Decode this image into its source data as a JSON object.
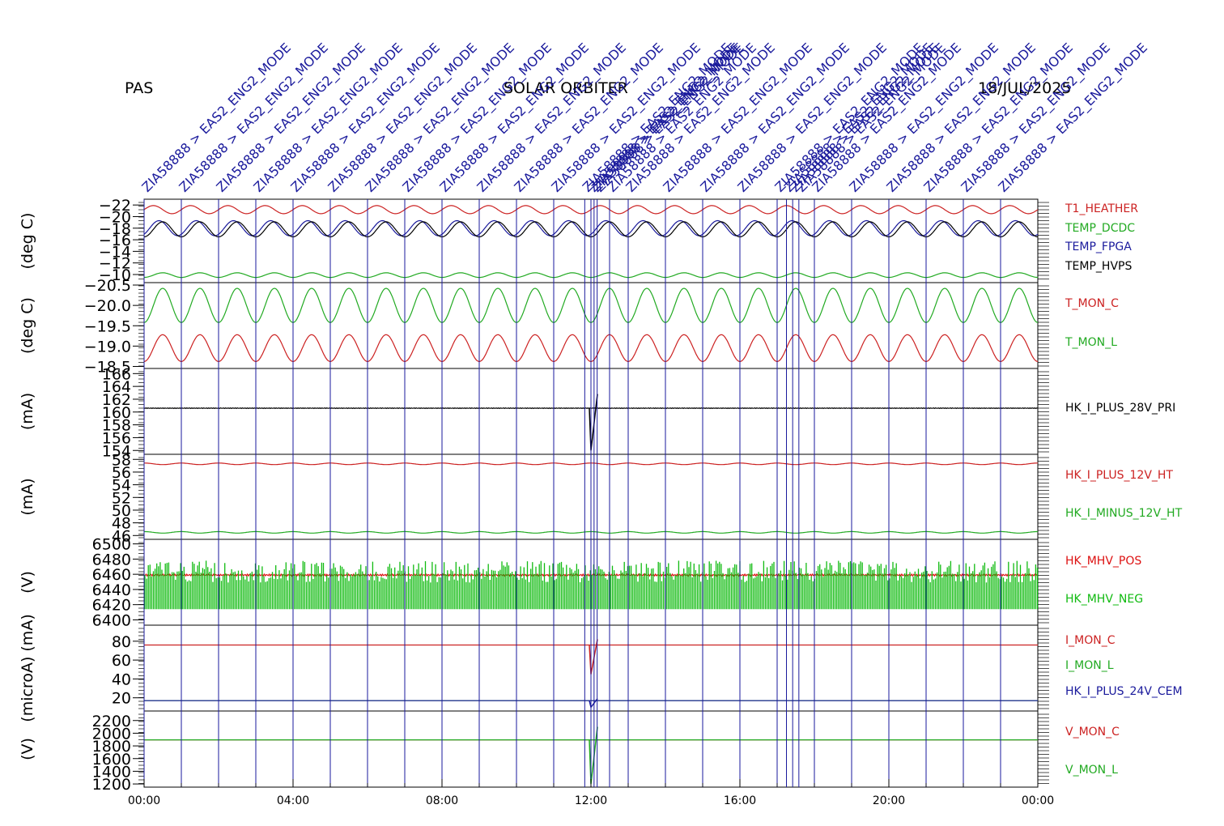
{
  "header": {
    "left": "PAS",
    "center": "SOLAR ORBITER",
    "right": "18/JUL/2025"
  },
  "event_labels": [
    {
      "time": "00:00",
      "text": "ZIA58888 > EAS2_ENG2_MODE"
    },
    {
      "time": "01:00",
      "text": "ZIA58888 > EAS2_ENG2_MODE"
    },
    {
      "time": "02:00",
      "text": "ZIA58888 > EAS2_ENG2_MODE"
    },
    {
      "time": "03:00",
      "text": "ZIA58888 > EAS2_ENG2_MODE"
    },
    {
      "time": "04:00",
      "text": "ZIA58888 > EAS2_ENG2_MODE"
    },
    {
      "time": "05:00",
      "text": "ZIA58888 > EAS2_ENG2_MODE"
    },
    {
      "time": "06:00",
      "text": "ZIA58888 > EAS2_ENG2_MODE"
    },
    {
      "time": "07:00",
      "text": "ZIA58888 > EAS2_ENG2_MODE"
    },
    {
      "time": "08:00",
      "text": "ZIA58888 > EAS2_ENG2_MODE"
    },
    {
      "time": "09:00",
      "text": "ZIA58888 > EAS2_ENG2_MODE"
    },
    {
      "time": "10:00",
      "text": "ZIA58888 > EAS2_ENG2_MODE"
    },
    {
      "time": "11:00",
      "text": "ZIA58888 > EAS2_ENG2_MODE"
    },
    {
      "time": "11:50",
      "text": "ZIA58888 > EAS2_ENG2_MODE"
    },
    {
      "time": "12:00",
      "text": "ZIA58888 > EAS2_ENG2_MODE"
    },
    {
      "time": "12:05",
      "text": "ZIA58888 > EAS2_ENG2_MODE"
    },
    {
      "time": "12:10",
      "text": "ZIA58888 > EAS2_ENG2_MODE"
    },
    {
      "time": "12:30",
      "text": "ZIA58888 > EAS2_ENG2_MODE"
    },
    {
      "time": "13:00",
      "text": "ZIA58888 > EAS2_ENG2_MODE"
    },
    {
      "time": "14:00",
      "text": "ZIA58888 > EAS2_ENG2_MODE"
    },
    {
      "time": "15:00",
      "text": "ZIA58888 > EAS2_ENG2_MODE"
    },
    {
      "time": "16:00",
      "text": "ZIA58888 > EAS2_ENG2_MODE"
    },
    {
      "time": "17:00",
      "text": "ZIA58888 > EAS2_ENG2_MODE"
    },
    {
      "time": "17:15",
      "text": "ZIA58888 > EAS2_ENG2_MODE"
    },
    {
      "time": "17:25",
      "text": "ZIA58888 > EAS2_ENG2_MODE"
    },
    {
      "time": "17:35",
      "text": "ZIA58888 > EAS2_ENG2_MODE"
    },
    {
      "time": "18:00",
      "text": "ZIA58888 > EAS2_ENG2_MODE"
    },
    {
      "time": "19:00",
      "text": "ZIA58888 > EAS2_ENG2_MODE"
    },
    {
      "time": "20:00",
      "text": "ZIA58888 > EAS2_ENG2_MODE"
    },
    {
      "time": "21:00",
      "text": "ZIA58888 > EAS2_ENG2_MODE"
    },
    {
      "time": "22:00",
      "text": "ZIA58888 > EAS2_ENG2_MODE"
    },
    {
      "time": "23:00",
      "text": "ZIA58888 > EAS2_ENG2_MODE"
    }
  ],
  "chart_data": {
    "type": "line",
    "x_ticks": [
      "00:00",
      "04:00",
      "08:00",
      "12:00",
      "16:00",
      "20:00",
      "00:00"
    ],
    "x_range_hours": [
      0,
      24
    ],
    "event_line_color": "#1a1a9c",
    "panels": [
      {
        "ylabel": "(deg C)",
        "ylim": [
          -23,
          -8.6
        ],
        "inverted": true,
        "ticks": [
          -10,
          -12,
          -14,
          -16,
          -18,
          -20,
          -22
        ],
        "tick_labels": [
          "−10",
          "−12",
          "−14",
          "−16",
          "−18",
          "−20",
          "−22"
        ],
        "series": [
          {
            "name": "T1_HEATHER",
            "color": "#cc2222",
            "base": -21.2,
            "amp": 0.7,
            "cycles": 24,
            "phase": 0.5
          },
          {
            "name": "TEMP_DCDC",
            "color": "#22aa22",
            "base": -9.9,
            "amp": 0.4,
            "cycles": 24,
            "phase": 0
          },
          {
            "name": "TEMP_FPGA",
            "color": "#1a1a9c",
            "base": -18.0,
            "amp": 1.3,
            "cycles": 24,
            "phase": 0.2
          },
          {
            "name": "TEMP_HVPS",
            "color": "#000000",
            "base": -17.8,
            "amp": 1.3,
            "cycles": 24,
            "phase": 0
          }
        ]
      },
      {
        "ylabel": "(deg C)",
        "ylim": [
          -20.56,
          -18.45
        ],
        "inverted": true,
        "ticks": [
          -18.5,
          -19.0,
          -19.5,
          -20.0,
          -20.5
        ],
        "tick_labels": [
          "−18.5",
          "−19.0",
          "−19.5",
          "−20.0",
          "−20.5"
        ],
        "series": [
          {
            "name": "T_MON_C",
            "color": "#cc2222",
            "base": -18.95,
            "amp": 0.33,
            "cycles": 24,
            "phase": 0
          },
          {
            "name": "T_MON_L",
            "color": "#22aa22",
            "base": -20.0,
            "amp": 0.42,
            "cycles": 24,
            "phase": 0
          }
        ]
      },
      {
        "ylabel": "(mA)",
        "ylim": [
          153.4,
          166.8
        ],
        "ticks": [
          154,
          156,
          158,
          160,
          162,
          164,
          166
        ],
        "tick_labels": [
          "154",
          "156",
          "158",
          "160",
          "162",
          "164",
          "166"
        ],
        "series": [
          {
            "name": "HK_I_PLUS_28V_PRI",
            "color": "#000000",
            "base": 160.6,
            "amp": 0.08,
            "cycles": 0,
            "phase": 0,
            "dip": [
              154.0,
              162.8
            ]
          }
        ]
      },
      {
        "ylabel": "(mA)",
        "ylim": [
          45.4,
          58.8
        ],
        "ticks": [
          46,
          48,
          50,
          52,
          54,
          56,
          58
        ],
        "tick_labels": [
          "46",
          "48",
          "50",
          "52",
          "54",
          "56",
          "58"
        ],
        "series": [
          {
            "name": "HK_I_PLUS_12V_HT",
            "color": "#cc2222",
            "base": 57.3,
            "amp": 0.12,
            "cycles": 24,
            "phase": 0
          },
          {
            "name": "HK_I_MINUS_12V_HT",
            "color": "#22aa22",
            "base": 46.5,
            "amp": 0.12,
            "cycles": 24,
            "phase": 0
          }
        ]
      },
      {
        "ylabel": "(V)",
        "ylim": [
          6393,
          6506
        ],
        "ticks": [
          6400,
          6420,
          6440,
          6460,
          6480,
          6500
        ],
        "tick_labels": [
          "6400",
          "6420",
          "6440",
          "6460",
          "6480",
          "6500"
        ],
        "series": [
          {
            "name": "HK_MHV_POS",
            "color": "#dd1111",
            "base": 6459,
            "amp": 2,
            "cycles": 0,
            "phase": 0
          },
          {
            "name": "HK_MHV_NEG",
            "color": "#11bb11",
            "band": [
              6414,
              6478
            ]
          }
        ]
      },
      {
        "ylabel": "(microA) (mA)",
        "ylim": [
          6,
          97
        ],
        "ticks": [
          20,
          40,
          60,
          80
        ],
        "tick_labels": [
          "20",
          "40",
          "60",
          "80"
        ],
        "series": [
          {
            "name": "I_MON_C",
            "color": "#cc2222",
            "base": 76,
            "amp": 0,
            "cycles": 0,
            "phase": 0,
            "dip": [
              45,
              82
            ]
          },
          {
            "name": "I_MON_L",
            "color": "#22aa22",
            "base": 17,
            "amp": 0,
            "cycles": 0,
            "phase": 0
          },
          {
            "name": "HK_I_PLUS_24V_CEM",
            "color": "#1a1a9c",
            "base": 17,
            "amp": 0,
            "cycles": 0,
            "phase": 0,
            "dip": [
              10,
              19
            ]
          }
        ]
      },
      {
        "ylabel": "(V)",
        "ylim": [
          1150,
          2350
        ],
        "ticks": [
          1200,
          1400,
          1600,
          1800,
          2000,
          2200
        ],
        "tick_labels": [
          "1200",
          "1400",
          "1600",
          "1800",
          "2000",
          "2200"
        ],
        "series": [
          {
            "name": "V_MON_C",
            "color": "#cc2222",
            "base": 1895,
            "amp": 0,
            "cycles": 0,
            "phase": 0
          },
          {
            "name": "V_MON_L",
            "color": "#22aa22",
            "base": 1895,
            "amp": 0,
            "cycles": 0,
            "phase": 0,
            "dip": [
              1200,
              2100
            ]
          }
        ]
      }
    ]
  }
}
